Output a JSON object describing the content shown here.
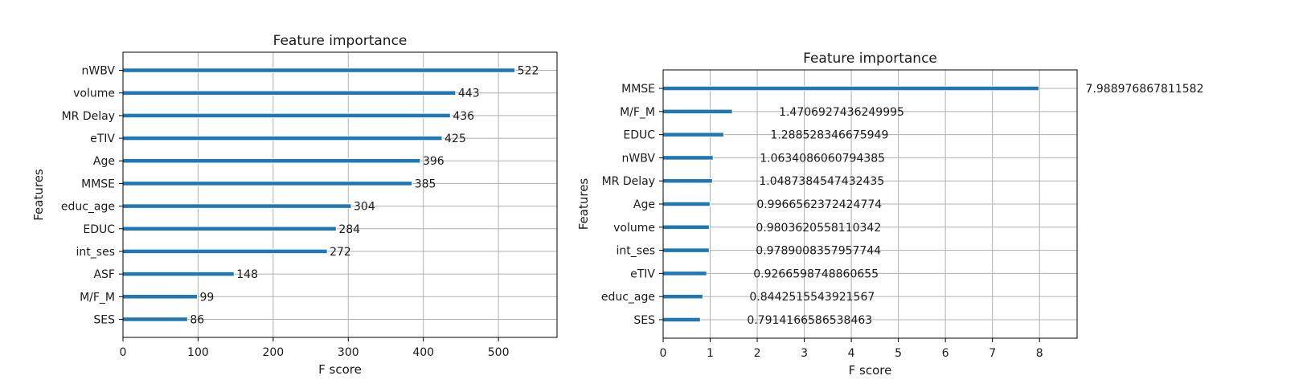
{
  "colors": {
    "bar": "#1f77b4",
    "grid": "#b0b0b0",
    "frame": "#000000"
  },
  "chart_data": [
    {
      "type": "bar",
      "orientation": "horizontal",
      "title": "Feature importance",
      "xlabel": "F score",
      "ylabel": "Features",
      "grid": true,
      "xlim": [
        0,
        578
      ],
      "xticks": [
        0,
        100,
        200,
        300,
        400,
        500
      ],
      "categories": [
        "nWBV",
        "volume",
        "MR Delay",
        "eTIV",
        "Age",
        "MMSE",
        "educ_age",
        "EDUC",
        "int_ses",
        "ASF",
        "M/F_M",
        "SES"
      ],
      "values": [
        522,
        443,
        436,
        425,
        396,
        385,
        304,
        284,
        272,
        148,
        99,
        86
      ],
      "value_labels": [
        "522",
        "443",
        "436",
        "425",
        "396",
        "385",
        "304",
        "284",
        "272",
        "148",
        "99",
        "86"
      ]
    },
    {
      "type": "bar",
      "orientation": "horizontal",
      "title": "Feature importance",
      "xlabel": "F score",
      "ylabel": "Features",
      "grid": true,
      "xlim": [
        0,
        8.8
      ],
      "xticks": [
        0,
        1,
        2,
        3,
        4,
        5,
        6,
        7,
        8
      ],
      "categories": [
        "MMSE",
        "M/F_M",
        "EDUC",
        "nWBV",
        "MR Delay",
        "Age",
        "volume",
        "int_ses",
        "eTIV",
        "educ_age",
        "SES"
      ],
      "values": [
        7.988976867811582,
        1.4706927436249995,
        1.288528346675949,
        1.0634086060794385,
        1.0487384547432435,
        0.9966562372424774,
        0.9803620558110342,
        0.9789008357957744,
        0.9266598748860655,
        0.8442515543921567,
        0.7914166586538463
      ],
      "value_labels": [
        "7.988976867811582",
        "1.4706927436249995",
        "1.288528346675949",
        "1.0634086060794385",
        "1.0487384547432435",
        "0.9966562372424774",
        "0.9803620558110342",
        "0.9789008357957744",
        "0.9266598748860655",
        "0.8442515543921567",
        "0.7914166586538463"
      ]
    }
  ]
}
